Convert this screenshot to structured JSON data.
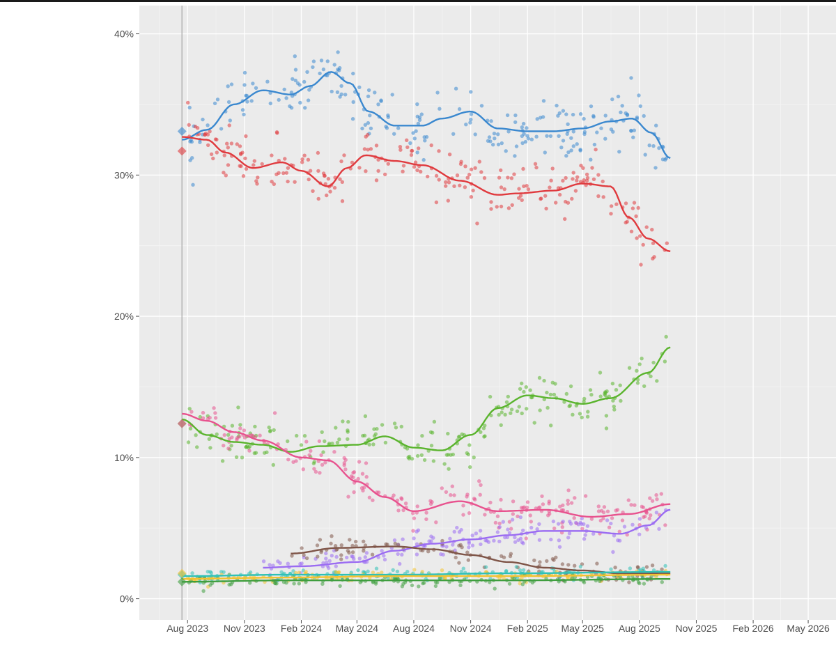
{
  "chart_data": {
    "type": "scatter",
    "title": "",
    "xlabel": "",
    "ylabel": "",
    "x_tick_labels": [
      "Aug 2023",
      "Nov 2023",
      "Feb 2024",
      "May 2024",
      "Aug 2024",
      "Nov 2024",
      "Feb 2025",
      "May 2025",
      "Aug 2025",
      "Nov 2025",
      "Feb 2026",
      "May 2026"
    ],
    "x_ticks": [
      "2023-08-01",
      "2023-11-01",
      "2024-02-01",
      "2024-05-01",
      "2024-08-01",
      "2024-11-01",
      "2025-02-01",
      "2025-05-01",
      "2025-08-01",
      "2025-11-01",
      "2026-02-01",
      "2026-05-01"
    ],
    "y_tick_labels": [
      "0%",
      "10%",
      "20%",
      "30%",
      "40%"
    ],
    "y_ticks": [
      0,
      10,
      20,
      30,
      40
    ],
    "xlim": [
      "2023-05-15",
      "2026-06-15"
    ],
    "ylim": [
      -1.5,
      42
    ],
    "grid": true,
    "legend": "none",
    "election_date": "2023-07-23",
    "series": [
      {
        "color": "#3a88cf",
        "election_result": 33.1,
        "trend_x": [
          "2023-07-23",
          "2023-09-01",
          "2023-10-15",
          "2023-12-01",
          "2024-01-15",
          "2024-02-15",
          "2024-03-20",
          "2024-04-20",
          "2024-05-20",
          "2024-07-01",
          "2024-08-15",
          "2024-09-15",
          "2024-11-01",
          "2024-12-15",
          "2025-02-01",
          "2025-03-15",
          "2025-05-01",
          "2025-06-15",
          "2025-07-20",
          "2025-08-20",
          "2025-09-20"
        ],
        "trend_y": [
          32.5,
          33.2,
          35.0,
          36.0,
          35.7,
          36.3,
          37.3,
          36.5,
          34.5,
          33.5,
          33.5,
          34.0,
          34.5,
          33.3,
          33.1,
          33.1,
          33.3,
          33.8,
          34.0,
          33.0,
          31.2
        ],
        "spread": 2.0,
        "n": 240,
        "start": "2023-08-01",
        "end": "2025-09-15"
      },
      {
        "color": "#e03a3e",
        "election_result": 31.7,
        "trend_x": [
          "2023-07-23",
          "2023-09-01",
          "2023-10-01",
          "2023-11-15",
          "2024-01-01",
          "2024-02-01",
          "2024-03-15",
          "2024-04-15",
          "2024-05-15",
          "2024-07-01",
          "2024-08-15",
          "2024-10-15",
          "2024-12-15",
          "2025-01-15",
          "2025-03-15",
          "2025-05-01",
          "2025-06-15",
          "2025-07-15",
          "2025-08-15",
          "2025-09-20"
        ],
        "trend_y": [
          32.7,
          32.5,
          31.6,
          30.5,
          30.9,
          30.3,
          29.2,
          30.5,
          31.4,
          31.0,
          30.7,
          29.6,
          28.6,
          28.7,
          28.9,
          29.4,
          29.2,
          27.0,
          25.5,
          24.6
        ],
        "spread": 1.8,
        "n": 240,
        "start": "2023-08-01",
        "end": "2025-09-15"
      },
      {
        "color": "#5ab42d",
        "election_result": 12.4,
        "trend_x": [
          "2023-07-23",
          "2023-09-01",
          "2023-10-15",
          "2023-12-01",
          "2024-01-15",
          "2024-03-01",
          "2024-05-01",
          "2024-06-15",
          "2024-08-01",
          "2024-09-15",
          "2024-11-01",
          "2024-12-15",
          "2025-02-01",
          "2025-03-15",
          "2025-05-01",
          "2025-06-15",
          "2025-08-15",
          "2025-09-20"
        ],
        "trend_y": [
          12.7,
          11.6,
          11.1,
          10.9,
          10.4,
          10.8,
          10.9,
          11.5,
          10.7,
          10.5,
          11.6,
          13.5,
          14.4,
          14.2,
          13.8,
          14.2,
          16.0,
          17.8
        ],
        "spread": 1.6,
        "n": 220,
        "start": "2023-08-01",
        "end": "2025-09-15"
      },
      {
        "color": "#e8528e",
        "election_result": 12.4,
        "trend_x": [
          "2023-07-23",
          "2023-09-01",
          "2023-10-15",
          "2023-12-01",
          "2024-02-01",
          "2024-03-15",
          "2024-05-01",
          "2024-06-15",
          "2024-08-01",
          "2024-10-15",
          "2024-12-15",
          "2025-03-01",
          "2025-05-15",
          "2025-07-15",
          "2025-09-20"
        ],
        "trend_y": [
          13.1,
          12.6,
          11.8,
          11.2,
          10.0,
          9.8,
          8.3,
          7.2,
          6.2,
          6.9,
          6.2,
          6.3,
          5.8,
          6.0,
          6.7
        ],
        "spread": 1.4,
        "n": 220,
        "start": "2023-08-01",
        "end": "2025-09-15"
      },
      {
        "color": "#9b6cf2",
        "election_result": null,
        "trend_x": [
          "2023-12-01",
          "2024-02-01",
          "2024-05-01",
          "2024-07-01",
          "2024-09-01",
          "2024-11-01",
          "2025-01-01",
          "2025-03-01",
          "2025-05-01",
          "2025-07-01",
          "2025-08-15",
          "2025-09-20"
        ],
        "trend_y": [
          2.2,
          2.3,
          2.6,
          3.4,
          3.9,
          4.2,
          4.5,
          4.8,
          4.8,
          4.6,
          5.2,
          6.3
        ],
        "spread": 1.0,
        "n": 150,
        "start": "2023-12-01",
        "end": "2025-09-15"
      },
      {
        "color": "#7f5548",
        "election_result": null,
        "trend_x": [
          "2024-01-15",
          "2024-04-01",
          "2024-07-01",
          "2024-09-01",
          "2024-11-01",
          "2025-01-01",
          "2025-03-01",
          "2025-05-01",
          "2025-07-01",
          "2025-09-20"
        ],
        "trend_y": [
          3.2,
          3.6,
          3.7,
          3.5,
          3.1,
          2.6,
          2.2,
          2.0,
          1.8,
          1.8
        ],
        "spread": 0.8,
        "n": 110,
        "start": "2024-01-15",
        "end": "2025-09-15"
      },
      {
        "color": "#2fc1b6",
        "election_result": 1.7,
        "trend_x": [
          "2023-07-23",
          "2024-01-01",
          "2024-07-01",
          "2025-01-01",
          "2025-09-20"
        ],
        "trend_y": [
          1.6,
          1.7,
          1.7,
          1.8,
          1.9
        ],
        "spread": 0.4,
        "n": 140,
        "start": "2023-08-01",
        "end": "2025-09-15"
      },
      {
        "color": "#f2c230",
        "election_result": 1.8,
        "trend_x": [
          "2023-07-23",
          "2024-01-01",
          "2024-07-01",
          "2025-01-01",
          "2025-09-20"
        ],
        "trend_y": [
          1.4,
          1.5,
          1.6,
          1.6,
          1.7
        ],
        "spread": 0.4,
        "n": 120,
        "start": "2023-08-01",
        "end": "2025-09-15"
      },
      {
        "color": "#3f9e3f",
        "election_result": 1.2,
        "trend_x": [
          "2023-07-23",
          "2024-01-01",
          "2024-07-01",
          "2025-01-01",
          "2025-09-20"
        ],
        "trend_y": [
          1.2,
          1.3,
          1.3,
          1.3,
          1.4
        ],
        "spread": 0.4,
        "n": 140,
        "start": "2023-08-01",
        "end": "2025-09-15"
      }
    ]
  }
}
